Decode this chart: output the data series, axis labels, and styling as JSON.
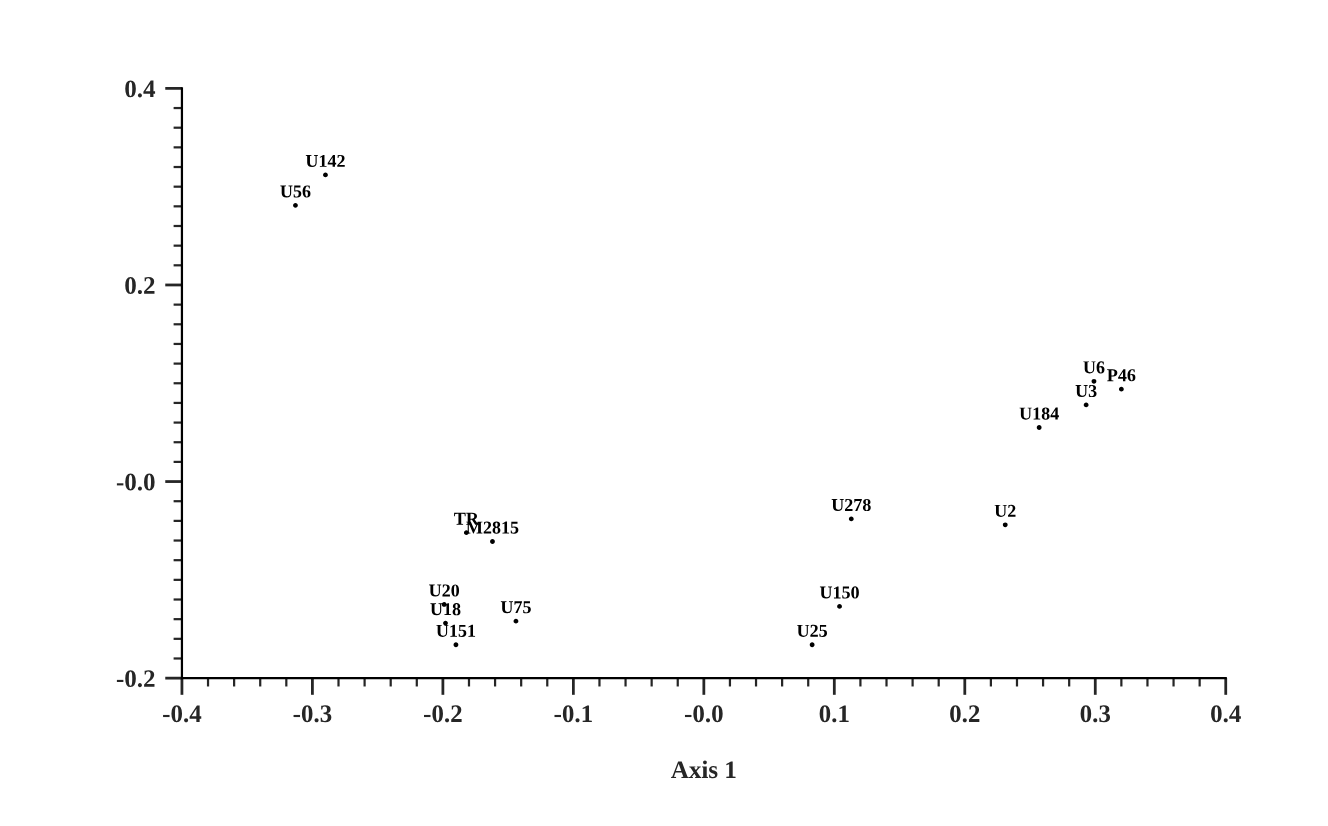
{
  "chart_data": {
    "type": "scatter",
    "xlabel": "Axis 1",
    "marker": "circle",
    "grid": false,
    "legend": false,
    "series": [
      {
        "color": "#000000",
        "x": [
          -0.29,
          -0.313,
          0.299,
          0.32,
          0.293,
          0.257,
          0.113,
          0.231,
          -0.182,
          -0.162,
          -0.199,
          -0.198,
          -0.144,
          -0.19,
          0.104,
          0.083
        ],
        "values": [
          0.312,
          0.281,
          0.102,
          0.094,
          0.078,
          0.055,
          -0.038,
          -0.044,
          -0.052,
          -0.061,
          -0.125,
          -0.144,
          -0.142,
          -0.166,
          -0.127,
          -0.166
        ],
        "value_labels": [
          "U142",
          "U56",
          "U6",
          "P46",
          "U3",
          "U184",
          "U278",
          "U2",
          "TR",
          "M2815",
          "U20",
          "U18",
          "U75",
          "U151",
          "U150",
          "U25"
        ]
      }
    ],
    "xlim": [
      -0.4,
      0.4
    ],
    "ylim": [
      -0.2,
      0.4
    ],
    "xticks": [
      -0.4,
      -0.3,
      -0.2,
      -0.1,
      {
        "value": 0,
        "label": "-0.0"
      },
      0.1,
      0.2,
      0.3,
      0.4,
      {
        "value": -0.38,
        "label": null
      },
      {
        "value": -0.36,
        "label": null
      },
      {
        "value": -0.34,
        "label": null
      },
      {
        "value": -0.32,
        "label": null
      },
      {
        "value": -0.28,
        "label": null
      },
      {
        "value": -0.26,
        "label": null
      },
      {
        "value": -0.24,
        "label": null
      },
      {
        "value": -0.22,
        "label": null
      },
      {
        "value": -0.18,
        "label": null
      },
      {
        "value": -0.16,
        "label": null
      },
      {
        "value": -0.14,
        "label": null
      },
      {
        "value": -0.12,
        "label": null
      },
      {
        "value": -0.08,
        "label": null
      },
      {
        "value": -0.06,
        "label": null
      },
      {
        "value": -0.04,
        "label": null
      },
      {
        "value": -0.02,
        "label": null
      },
      {
        "value": 0.02,
        "label": null
      },
      {
        "value": 0.04,
        "label": null
      },
      {
        "value": 0.06,
        "label": null
      },
      {
        "value": 0.08,
        "label": null
      },
      {
        "value": 0.12,
        "label": null
      },
      {
        "value": 0.14,
        "label": null
      },
      {
        "value": 0.16,
        "label": null
      },
      {
        "value": 0.18,
        "label": null
      },
      {
        "value": 0.22,
        "label": null
      },
      {
        "value": 0.24,
        "label": null
      },
      {
        "value": 0.26,
        "label": null
      },
      {
        "value": 0.28,
        "label": null
      },
      {
        "value": 0.32,
        "label": null
      },
      {
        "value": 0.34,
        "label": null
      },
      {
        "value": 0.36,
        "label": null
      },
      {
        "value": 0.38,
        "label": null
      }
    ],
    "yticks": [
      -0.2,
      {
        "value": 0,
        "label": "-0.0"
      },
      0.2,
      0.4,
      {
        "value": -0.18,
        "label": null
      },
      {
        "value": -0.16,
        "label": null
      },
      {
        "value": -0.14,
        "label": null
      },
      {
        "value": -0.12,
        "label": null
      },
      {
        "value": -0.1,
        "label": null
      },
      {
        "value": -0.08,
        "label": null
      },
      {
        "value": -0.06,
        "label": null
      },
      {
        "value": -0.04,
        "label": null
      },
      {
        "value": -0.02,
        "label": null
      },
      {
        "value": 0.02,
        "label": null
      },
      {
        "value": 0.04,
        "label": null
      },
      {
        "value": 0.06,
        "label": null
      },
      {
        "value": 0.08,
        "label": null
      },
      {
        "value": 0.1,
        "label": null
      },
      {
        "value": 0.12,
        "label": null
      },
      {
        "value": 0.14,
        "label": null
      },
      {
        "value": 0.16,
        "label": null
      },
      {
        "value": 0.18,
        "label": null
      },
      {
        "value": 0.22,
        "label": null
      },
      {
        "value": 0.24,
        "label": null
      },
      {
        "value": 0.26,
        "label": null
      },
      {
        "value": 0.28,
        "label": null
      },
      {
        "value": 0.3,
        "label": null
      },
      {
        "value": 0.32,
        "label": null
      },
      {
        "value": 0.34,
        "label": null
      },
      {
        "value": 0.36,
        "label": null
      },
      {
        "value": 0.38,
        "label": null
      }
    ]
  }
}
